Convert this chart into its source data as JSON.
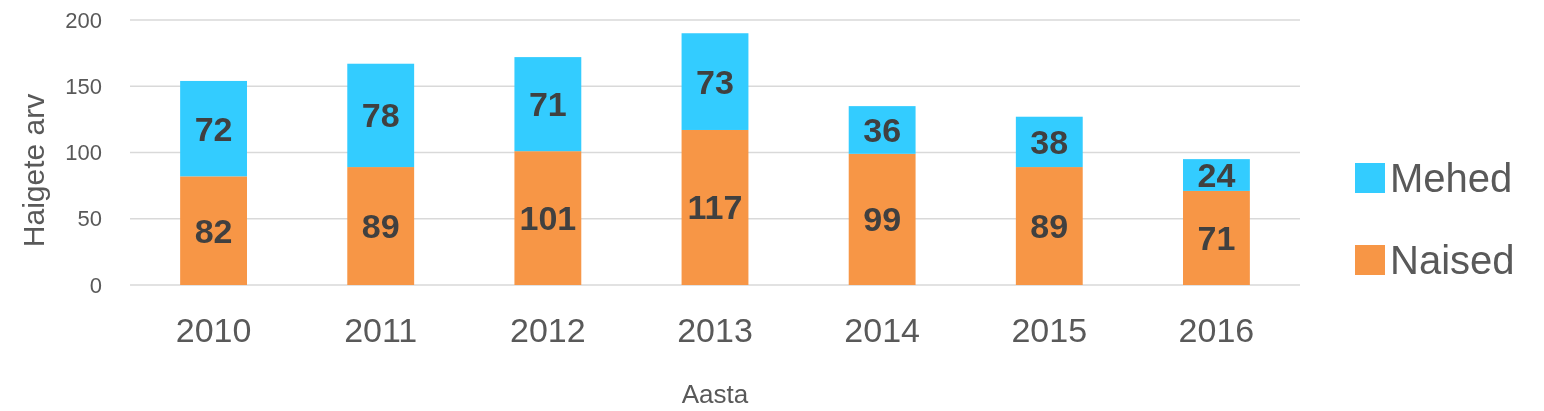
{
  "chart_data": {
    "type": "bar",
    "stacked": true,
    "categories": [
      "2010",
      "2011",
      "2012",
      "2013",
      "2014",
      "2015",
      "2016"
    ],
    "series": [
      {
        "name": "Naised",
        "color": "#f79646",
        "values": [
          82,
          89,
          101,
          117,
          99,
          89,
          71
        ]
      },
      {
        "name": "Mehed",
        "color": "#33ccff",
        "values": [
          72,
          78,
          71,
          73,
          36,
          38,
          24
        ]
      }
    ],
    "ylabel": "Haigete arv",
    "xlabel": "Aasta",
    "ylim": [
      0,
      200
    ],
    "yticks": [
      0,
      50,
      100,
      150,
      200
    ],
    "grid": "y",
    "legend": "right",
    "data_labels": true
  }
}
